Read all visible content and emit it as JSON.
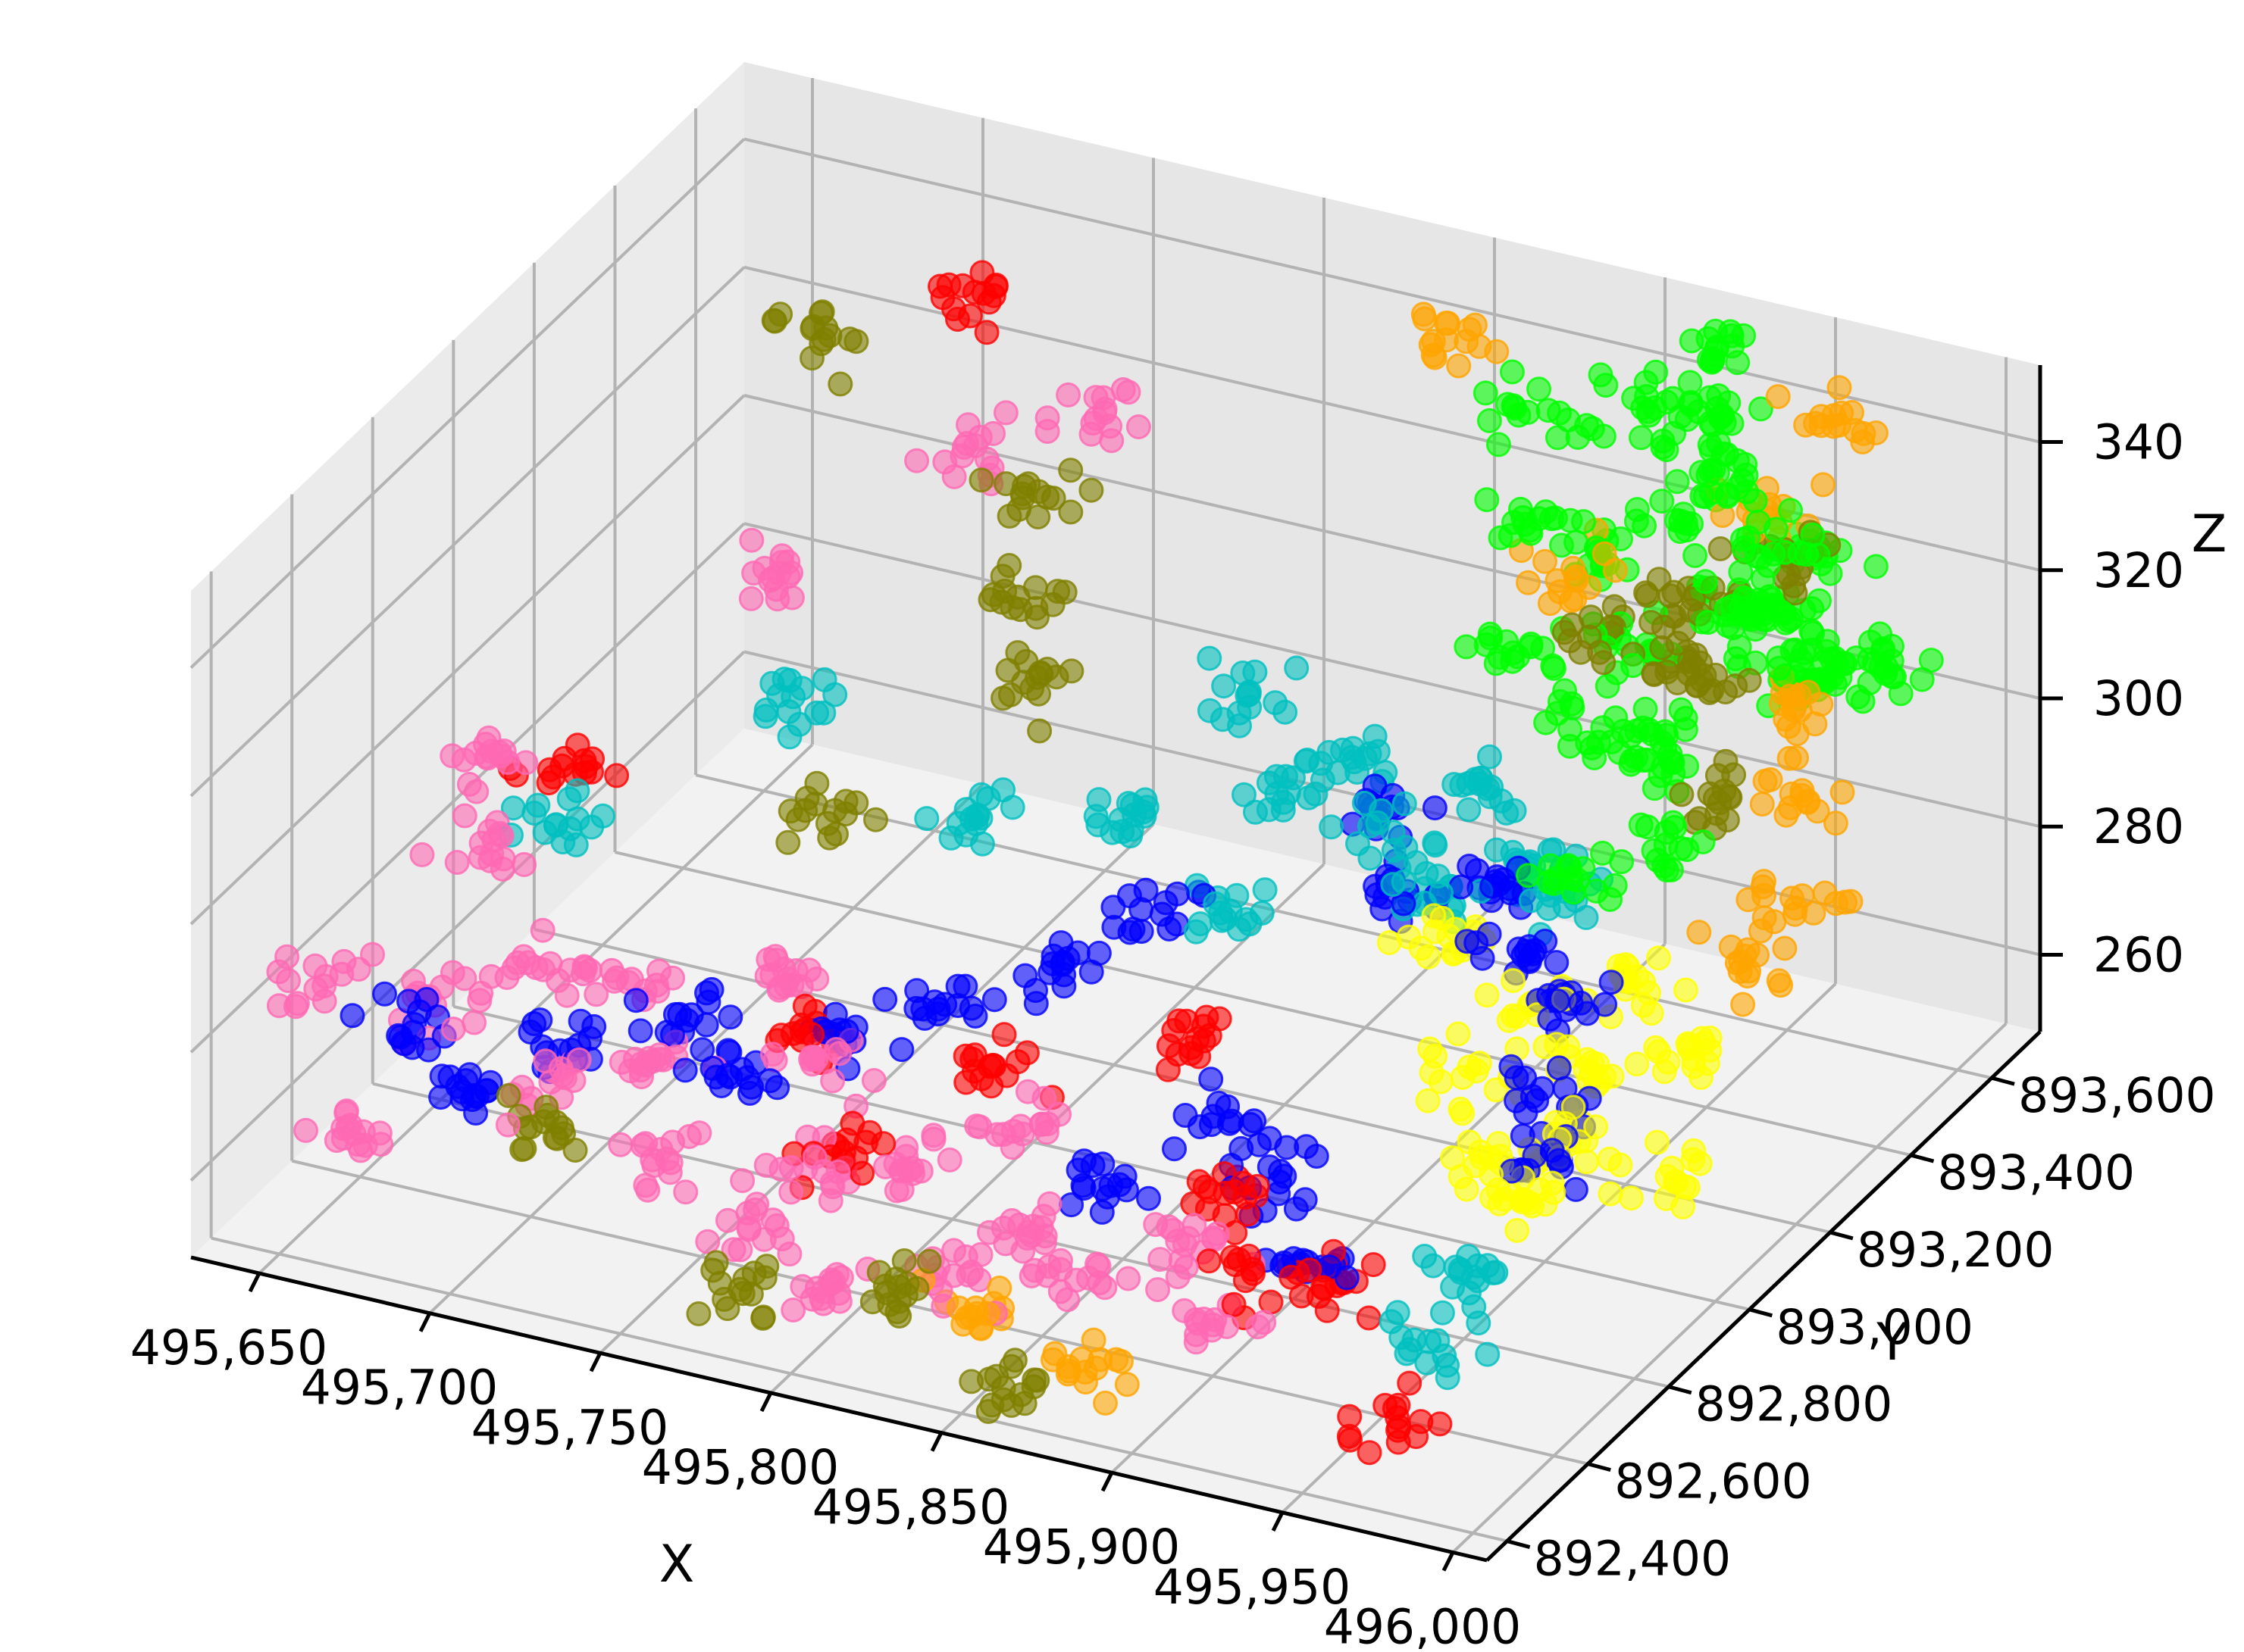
{
  "chart_data": {
    "type": "scatter",
    "projection": "3d",
    "title": "",
    "xlabel": "X",
    "ylabel": "Y",
    "zlabel": "Z",
    "xlim": [
      495630,
      496010
    ],
    "ylim": [
      892350,
      893720
    ],
    "zlim": [
      248,
      352
    ],
    "x_ticks": [
      "495,650",
      "495,700",
      "495,750",
      "495,800",
      "495,850",
      "495,900",
      "495,950",
      "496,000"
    ],
    "y_ticks": [
      "892,400",
      "892,600",
      "892,800",
      "893,000",
      "893,200",
      "893,400",
      "893,600"
    ],
    "z_ticks": [
      "260",
      "280",
      "300",
      "320",
      "340"
    ],
    "grid": true,
    "legend": null,
    "marker_alpha": 0.6,
    "series": [
      {
        "color": "#00ff00",
        "points": [
          [
            495930,
            893550,
            345
          ],
          [
            495950,
            893500,
            338
          ],
          [
            495905,
            893600,
            341
          ],
          [
            495960,
            893450,
            332
          ],
          [
            495920,
            893580,
            325
          ],
          [
            495945,
            893520,
            318
          ],
          [
            495915,
            893480,
            312
          ],
          [
            495955,
            893560,
            305
          ],
          [
            495935,
            893420,
            298
          ],
          [
            495925,
            893620,
            335
          ],
          [
            495965,
            893380,
            328
          ],
          [
            495900,
            893550,
            320
          ],
          [
            495940,
            893650,
            310
          ],
          [
            495910,
            893400,
            302
          ],
          [
            495950,
            893300,
            295
          ],
          [
            495930,
            893250,
            290
          ],
          [
            495920,
            893680,
            346
          ],
          [
            495960,
            893600,
            322
          ],
          [
            495880,
            893600,
            336
          ],
          [
            495975,
            893500,
            315
          ],
          [
            495940,
            893350,
            308
          ],
          [
            495895,
            893450,
            330
          ],
          [
            495955,
            893650,
            300
          ],
          [
            495985,
            893550,
            312
          ],
          [
            495905,
            893300,
            318
          ]
        ]
      },
      {
        "color": "#808000",
        "points": [
          [
            495935,
            893500,
            320
          ],
          [
            495945,
            893420,
            312
          ],
          [
            495925,
            893560,
            305
          ],
          [
            495955,
            893380,
            298
          ],
          [
            495915,
            893460,
            315
          ],
          [
            495750,
            893400,
            320
          ],
          [
            495760,
            893300,
            310
          ],
          [
            495770,
            893250,
            300
          ],
          [
            495680,
            893500,
            330
          ],
          [
            495700,
            892600,
            262
          ],
          [
            495780,
            892450,
            255
          ],
          [
            495820,
            892500,
            258
          ],
          [
            495860,
            892420,
            252
          ],
          [
            495730,
            893100,
            285
          ],
          [
            495960,
            893520,
            328
          ]
        ]
      },
      {
        "color": "#ffa500",
        "points": [
          [
            495960,
            893600,
            345
          ],
          [
            495975,
            893400,
            300
          ],
          [
            495990,
            893300,
            292
          ],
          [
            495985,
            893200,
            288
          ],
          [
            495970,
            893450,
            310
          ],
          [
            495850,
            893650,
            340
          ],
          [
            495880,
            892480,
            254
          ],
          [
            495840,
            892520,
            256
          ],
          [
            495950,
            893550,
            332
          ],
          [
            495900,
            893500,
            318
          ]
        ]
      },
      {
        "color": "#ffff00",
        "points": [
          [
            495950,
            893100,
            272
          ],
          [
            495960,
            893000,
            268
          ],
          [
            495940,
            892950,
            266
          ],
          [
            495930,
            893150,
            275
          ],
          [
            495970,
            893200,
            270
          ],
          [
            495955,
            892900,
            264
          ],
          [
            495920,
            893050,
            270
          ],
          [
            495980,
            893050,
            262
          ],
          [
            495900,
            893200,
            278
          ],
          [
            495945,
            893250,
            276
          ]
        ]
      },
      {
        "color": "#00bfbf",
        "points": [
          [
            495850,
            893400,
            290
          ],
          [
            495870,
            893300,
            287
          ],
          [
            495830,
            893350,
            285
          ],
          [
            495890,
            893250,
            283
          ],
          [
            495810,
            893450,
            292
          ],
          [
            495880,
            893450,
            286
          ],
          [
            495760,
            893200,
            282
          ],
          [
            495900,
            893380,
            281
          ],
          [
            495955,
            892750,
            262
          ],
          [
            495960,
            892650,
            258
          ],
          [
            495700,
            893250,
            290
          ],
          [
            495660,
            893000,
            280
          ],
          [
            495920,
            893300,
            284
          ],
          [
            495840,
            893150,
            280
          ],
          [
            495800,
            893250,
            284
          ]
        ]
      },
      {
        "color": "#0000ff",
        "points": [
          [
            495900,
            893300,
            283
          ],
          [
            495920,
            893200,
            280
          ],
          [
            495880,
            893250,
            282
          ],
          [
            495940,
            893150,
            278
          ],
          [
            495860,
            893350,
            285
          ],
          [
            495950,
            893050,
            272
          ],
          [
            495960,
            892950,
            268
          ],
          [
            495820,
            893150,
            277
          ],
          [
            495800,
            893050,
            274
          ],
          [
            495780,
            892950,
            270
          ],
          [
            495760,
            892850,
            268
          ],
          [
            495740,
            892750,
            266
          ],
          [
            495720,
            892800,
            270
          ],
          [
            495700,
            892700,
            268
          ],
          [
            495680,
            892600,
            265
          ],
          [
            495660,
            892650,
            270
          ],
          [
            495870,
            892900,
            266
          ],
          [
            495890,
            892850,
            262
          ],
          [
            495910,
            892750,
            258
          ],
          [
            495850,
            892750,
            262
          ]
        ]
      },
      {
        "color": "#ff0000",
        "points": [
          [
            495700,
            893700,
            326
          ],
          [
            495880,
            892800,
            262
          ],
          [
            495900,
            892700,
            258
          ],
          [
            495800,
            892900,
            266
          ],
          [
            495750,
            892850,
            268
          ],
          [
            495850,
            893000,
            270
          ],
          [
            495920,
            892750,
            256
          ],
          [
            495780,
            892700,
            262
          ],
          [
            495650,
            893100,
            282
          ],
          [
            495960,
            892550,
            252
          ]
        ]
      },
      {
        "color": "#ff69b4",
        "points": [
          [
            495760,
            892800,
            268
          ],
          [
            495740,
            892900,
            272
          ],
          [
            495720,
            892750,
            266
          ],
          [
            495780,
            892650,
            262
          ],
          [
            495700,
            892850,
            270
          ],
          [
            495800,
            892700,
            262
          ],
          [
            495820,
            892800,
            265
          ],
          [
            495840,
            892650,
            260
          ],
          [
            495680,
            892800,
            272
          ],
          [
            495660,
            892700,
            270
          ],
          [
            495740,
            892600,
            262
          ],
          [
            495770,
            892550,
            258
          ],
          [
            495860,
            892600,
            258
          ],
          [
            495880,
            892700,
            260
          ],
          [
            495900,
            892600,
            256
          ],
          [
            495700,
            892650,
            266
          ],
          [
            495650,
            892900,
            282
          ],
          [
            495640,
            893000,
            288
          ],
          [
            495750,
            893600,
            320
          ],
          [
            495720,
            893500,
            315
          ],
          [
            495690,
            893300,
            305
          ],
          [
            495640,
            892600,
            278
          ],
          [
            495660,
            892500,
            262
          ],
          [
            495800,
            892500,
            256
          ],
          [
            495830,
            892550,
            258
          ]
        ]
      }
    ]
  }
}
